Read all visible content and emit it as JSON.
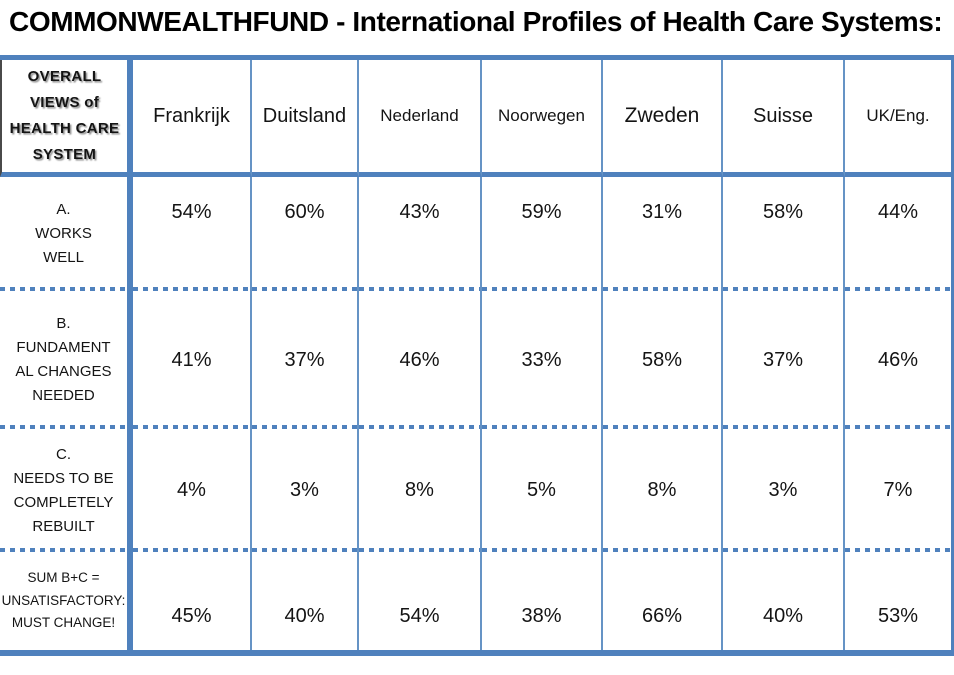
{
  "title": "COMMONWEALTHFUND - International Profiles of Health Care Systems:",
  "colors": {
    "border_blue": "#4f81bd",
    "thin_grid_blue": "#6593c5",
    "corner_cell_left_border": "#4a4a4a",
    "text": "#141414",
    "background": "#ffffff"
  },
  "chart_data": {
    "type": "table",
    "title": "COMMONWEALTHFUND - International Profiles of Health Care Systems:",
    "corner_header": "OVERALL VIEWS of HEALTH CARE SYSTEM",
    "corner_header_lines": [
      "OVERALL",
      "VIEWS of",
      "HEALTH CARE",
      "SYSTEM"
    ],
    "columns": [
      "Frankrijk",
      "Duitsland",
      "Nederland",
      "Noorwegen",
      "Zweden",
      "Suisse",
      "UK/Eng."
    ],
    "rows": [
      {
        "label": "A. WORKS WELL",
        "label_lines": [
          "A.",
          "WORKS",
          "WELL"
        ],
        "values": [
          "54%",
          "60%",
          "43%",
          "59%",
          "31%",
          "58%",
          "44%"
        ]
      },
      {
        "label": "B. FUNDAMENTAL CHANGES NEEDED",
        "label_lines": [
          "B.",
          "FUNDAMENT",
          "AL CHANGES",
          "NEEDED"
        ],
        "values": [
          "41%",
          "37%",
          "46%",
          "33%",
          "58%",
          "37%",
          "46%"
        ]
      },
      {
        "label": "C. NEEDS TO BE COMPLETELY REBUILT",
        "label_lines": [
          "C.",
          "NEEDS TO BE",
          "COMPLETELY",
          "REBUILT"
        ],
        "values": [
          "4%",
          "3%",
          "8%",
          "5%",
          "8%",
          "3%",
          "7%"
        ]
      },
      {
        "label": "SUM B+C = UNSATISFACTORY: MUST CHANGE!",
        "label_lines": [
          "SUM B+C =",
          "UNSATISFACTORY:",
          "MUST CHANGE!"
        ],
        "values": [
          "45%",
          "40%",
          "54%",
          "38%",
          "66%",
          "40%",
          "53%"
        ]
      }
    ]
  }
}
